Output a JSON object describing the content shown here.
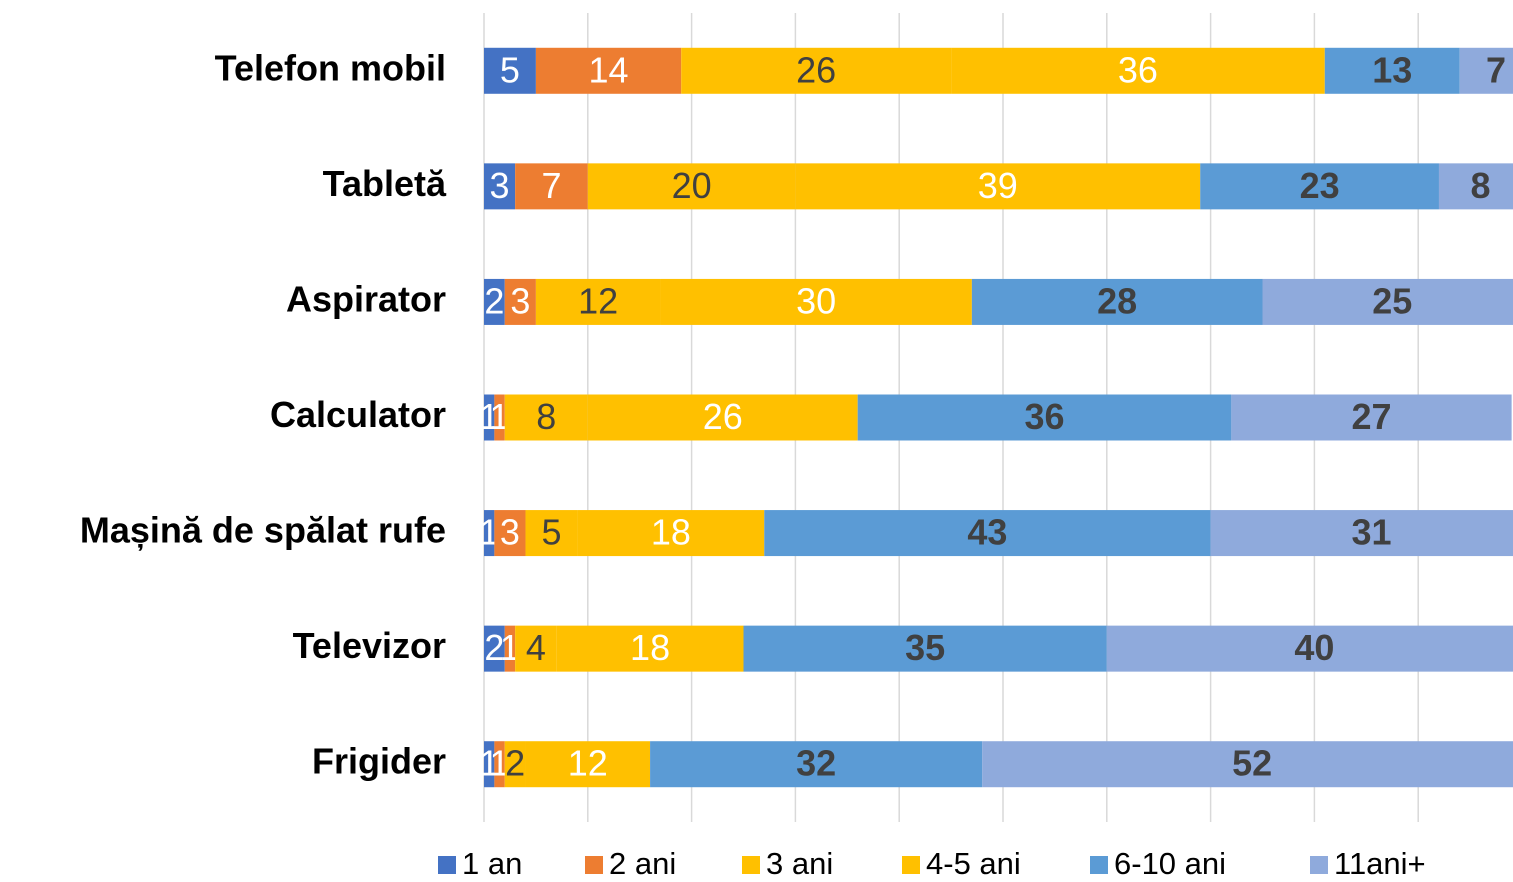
{
  "chart_data": {
    "type": "stacked_barh",
    "categories": [
      "Telefon mobil",
      "Tabletă",
      "Aspirator",
      "Calculator",
      "Mașină de spălat rufe",
      "Televizor",
      "Frigider"
    ],
    "series": [
      {
        "name": "1 an",
        "color": "#4472c4",
        "label_color": "#ffffff",
        "label_bold": false,
        "values": [
          5,
          3,
          2,
          1,
          1,
          2,
          1
        ]
      },
      {
        "name": "2 ani",
        "color": "#ed7d31",
        "label_color": "#ffffff",
        "label_bold": false,
        "values": [
          14,
          7,
          3,
          1,
          3,
          1,
          1
        ]
      },
      {
        "name": "3 ani",
        "color": "#ffc000",
        "label_color": "#404040",
        "label_bold": false,
        "values": [
          26,
          20,
          12,
          8,
          5,
          4,
          2
        ]
      },
      {
        "name": "4-5 ani",
        "color": "#ffc000",
        "label_color": "#ffffff",
        "label_bold": false,
        "values": [
          36,
          39,
          30,
          26,
          18,
          18,
          12
        ]
      },
      {
        "name": "6-10 ani",
        "color": "#5b9bd5",
        "label_color": "#404040",
        "label_bold": true,
        "values": [
          13,
          23,
          28,
          36,
          43,
          35,
          32
        ]
      },
      {
        "name": "11ani+",
        "color": "#8faadc",
        "label_color": "#404040",
        "label_bold": true,
        "values": [
          7,
          8,
          25,
          27,
          31,
          40,
          52
        ]
      }
    ],
    "xlim": [
      0,
      100
    ],
    "xticks": [
      0,
      10,
      20,
      30,
      40,
      50,
      60,
      70,
      80,
      90,
      100
    ],
    "grid": true,
    "legend": "bottom"
  }
}
